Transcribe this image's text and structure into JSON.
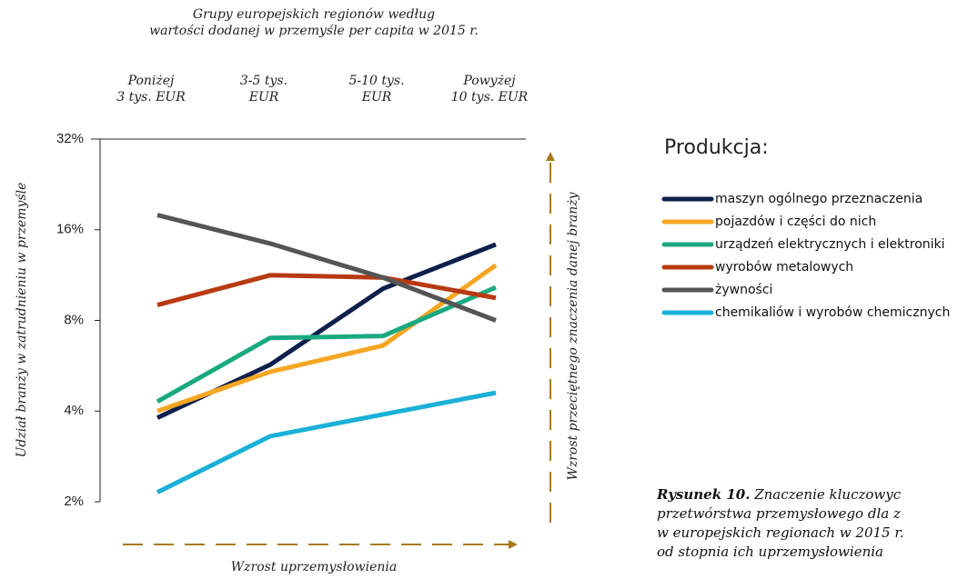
{
  "chart_data": {
    "type": "line",
    "title": "Grupy europejskich regionów według\nwartości dodanej w przemyśle per capita w 2015 r.",
    "categories": [
      "Poniżej\n3 tys. EUR",
      "3-5 tys.\nEUR",
      "5-10 tys.\nEUR",
      "Powyżej\n10 tys. EUR"
    ],
    "y_label": "Udział branży w zatrudnieniu w przemyśle",
    "x_label": "Wzrost uprzemysłowienia",
    "y2_label": "Wzrost przeciętnego znaczenia danej branży",
    "legend_title": "Produkcja:",
    "log_scale": true,
    "ylim": [
      2,
      32
    ],
    "yticks": [
      {
        "value": 2,
        "label": "2%"
      },
      {
        "value": 4,
        "label": "4%"
      },
      {
        "value": 8,
        "label": "8%"
      },
      {
        "value": 16,
        "label": "16%"
      },
      {
        "value": 32,
        "label": "32%"
      }
    ],
    "series": [
      {
        "name": "maszyn ogólnego przeznaczenia",
        "color": "#0d1f4a",
        "values": [
          3.8,
          5.7,
          10.2,
          14.3
        ]
      },
      {
        "name": "pojazdów i części do nich",
        "color": "#f5a623",
        "values": [
          4.0,
          5.4,
          6.6,
          12.2
        ]
      },
      {
        "name": "urządzeń elektrycznych i elektroniki",
        "color": "#1aaa7f",
        "values": [
          4.3,
          7.0,
          7.1,
          10.3
        ]
      },
      {
        "name": "wyrobów metalowych",
        "color": "#b83a12",
        "values": [
          9.0,
          11.3,
          11.1,
          9.5
        ]
      },
      {
        "name": "żywności",
        "color": "#555555",
        "values": [
          17.9,
          14.4,
          11.1,
          8.0
        ]
      },
      {
        "name": "chemikaliów i wyrobów chemicznych",
        "color": "#1ab0d8",
        "values": [
          2.15,
          3.3,
          3.9,
          4.6
        ]
      }
    ],
    "caption": {
      "title": "Rysunek 10.",
      "lines": [
        "Znaczenie kluczowyc",
        "przetwórstwa przemysłowego dla z",
        "w europejskich regionach w 2015 r.",
        "od stopnia ich uprzemysłowienia"
      ]
    }
  }
}
